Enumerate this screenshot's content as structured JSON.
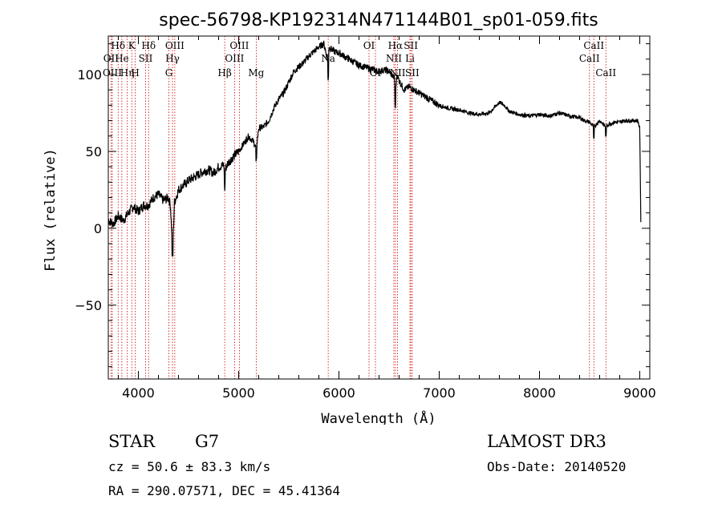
{
  "chart_data": {
    "type": "line",
    "title": "spec-56798-KP192314N471144B01_sp01-059.fits",
    "xlabel": "Wavelength (Å)",
    "ylabel": "Flux (relative)",
    "xlim": [
      3700,
      9100
    ],
    "ylim": [
      -98,
      125
    ],
    "xticks": [
      4000,
      5000,
      6000,
      7000,
      8000,
      9000
    ],
    "yticks": [
      -50,
      0,
      50,
      100
    ],
    "spectrum": {
      "name": "flux",
      "x": [
        3700,
        3750,
        3800,
        3850,
        3900,
        3950,
        4000,
        4050,
        4100,
        4150,
        4200,
        4250,
        4300,
        4320,
        4340,
        4360,
        4400,
        4450,
        4500,
        4550,
        4600,
        4650,
        4700,
        4750,
        4800,
        4850,
        4861,
        4900,
        4950,
        5000,
        5050,
        5100,
        5150,
        5175,
        5200,
        5250,
        5300,
        5350,
        5400,
        5450,
        5500,
        5550,
        5600,
        5650,
        5700,
        5750,
        5800,
        5850,
        5893,
        5900,
        5950,
        6000,
        6050,
        6100,
        6150,
        6200,
        6250,
        6300,
        6350,
        6400,
        6450,
        6500,
        6550,
        6563,
        6580,
        6600,
        6650,
        6700,
        6750,
        6800,
        6850,
        6900,
        6950,
        7000,
        7100,
        7200,
        7300,
        7400,
        7500,
        7600,
        7650,
        7700,
        7800,
        7900,
        8000,
        8100,
        8200,
        8300,
        8400,
        8450,
        8500,
        8542,
        8600,
        8662,
        8700,
        8750,
        8800,
        8850,
        8900,
        8950,
        8980,
        9000,
        9010
      ],
      "y": [
        5,
        3,
        8,
        5,
        10,
        14,
        11,
        15,
        15,
        20,
        22,
        18,
        20,
        15,
        -15,
        17,
        25,
        28,
        31,
        33,
        35,
        37,
        38,
        36,
        40,
        41,
        38,
        43,
        47,
        50,
        55,
        60,
        56,
        52,
        65,
        66,
        70,
        78,
        84,
        88,
        95,
        102,
        105,
        108,
        112,
        115,
        118,
        120,
        108,
        118,
        115,
        114,
        112,
        110,
        108,
        106,
        105,
        104,
        103,
        102,
        103,
        102,
        98,
        90,
        100,
        96,
        90,
        92,
        90,
        88,
        86,
        84,
        82,
        80,
        78,
        77,
        75,
        74,
        75,
        82,
        80,
        76,
        74,
        73,
        74,
        73,
        75,
        73,
        72,
        70,
        69,
        66,
        70,
        66,
        68,
        69,
        69,
        70,
        70,
        70,
        70,
        65,
        5
      ]
    },
    "spectral_lines": [
      {
        "name": "Hδ",
        "wavelength": 3798,
        "row": 1
      },
      {
        "name": "OII",
        "wavelength": 3727,
        "row": 2
      },
      {
        "name": "OIII",
        "wavelength": 3740,
        "row": 3
      },
      {
        "name": "He",
        "wavelength": 3835,
        "row": 2
      },
      {
        "name": "Hη",
        "wavelength": 3889,
        "row": 3
      },
      {
        "name": "K",
        "wavelength": 3934,
        "row": 1
      },
      {
        "name": "H",
        "wavelength": 3969,
        "row": 3
      },
      {
        "name": "Hδ",
        "wavelength": 4102,
        "row": 1
      },
      {
        "name": "SII",
        "wavelength": 4072,
        "row": 2
      },
      {
        "name": "OIII",
        "wavelength": 4363,
        "row": 1
      },
      {
        "name": "Hγ",
        "wavelength": 4340,
        "row": 2
      },
      {
        "name": "G",
        "wavelength": 4304,
        "row": 3
      },
      {
        "name": "Hβ",
        "wavelength": 4861,
        "row": 3
      },
      {
        "name": "OIII",
        "wavelength": 5007,
        "row": 1
      },
      {
        "name": "OIII",
        "wavelength": 4959,
        "row": 2
      },
      {
        "name": "Mg",
        "wavelength": 5175,
        "row": 3
      },
      {
        "name": "Na",
        "wavelength": 5893,
        "row": 2
      },
      {
        "name": "OI",
        "wavelength": 6300,
        "row": 1
      },
      {
        "name": "OI",
        "wavelength": 6364,
        "row": 3
      },
      {
        "name": "Hα",
        "wavelength": 6563,
        "row": 1
      },
      {
        "name": "NII",
        "wavelength": 6548,
        "row": 2
      },
      {
        "name": "NII",
        "wavelength": 6584,
        "row": 3
      },
      {
        "name": "SII",
        "wavelength": 6717,
        "row": 1
      },
      {
        "name": "Li",
        "wavelength": 6708,
        "row": 2
      },
      {
        "name": "SII",
        "wavelength": 6731,
        "row": 3
      },
      {
        "name": "CaII",
        "wavelength": 8542,
        "row": 1
      },
      {
        "name": "CaII",
        "wavelength": 8498,
        "row": 2
      },
      {
        "name": "CaII",
        "wavelength": 8662,
        "row": 3
      }
    ]
  },
  "info": {
    "class": "STAR",
    "subclass": "G7",
    "survey": "LAMOST DR3",
    "cz": "cz = 50.6 ± 83.3 km/s",
    "obs_date": "Obs-Date: 20140520",
    "coords": "RA = 290.07571, DEC =  45.41364"
  },
  "colors": {
    "spectrum": "#000000",
    "line_marker": "#cc0000",
    "axes": "#000000"
  }
}
